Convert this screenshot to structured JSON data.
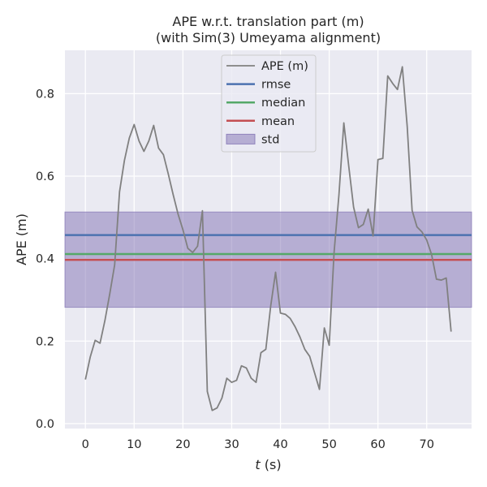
{
  "chart_data": {
    "type": "line",
    "title": "APE w.r.t. translation part (m)",
    "subtitle": "(with Sim(3) Umeyama alignment)",
    "xlabel_var": "t",
    "xlabel_unit": " (s)",
    "ylabel": "APE (m)",
    "xlim": [
      -4.2,
      79.2
    ],
    "ylim": [
      -0.012,
      0.905
    ],
    "x_ticks": [
      0,
      10,
      20,
      30,
      40,
      50,
      60,
      70
    ],
    "y_ticks": [
      0.0,
      0.2,
      0.4,
      0.6,
      0.8
    ],
    "y_tick_labels": [
      "0.0",
      "0.2",
      "0.4",
      "0.6",
      "0.8"
    ],
    "grid": true,
    "legend_position": "top-center",
    "colors": {
      "background": "#eaeaf2",
      "grid": "#ffffff",
      "ape": "#808080",
      "rmse": "#4c72b0",
      "median": "#55a868",
      "mean": "#c44e52",
      "std": "#8172b3"
    },
    "series": [
      {
        "name": "APE (m)",
        "x": [
          0,
          1,
          2,
          3,
          4,
          5,
          6,
          7,
          8,
          9,
          10,
          11,
          12,
          13,
          14,
          15,
          16,
          17,
          18,
          19,
          20,
          21,
          22,
          23,
          24,
          25,
          26,
          27,
          28,
          29,
          30,
          31,
          32,
          33,
          34,
          35,
          36,
          37,
          38,
          39,
          40,
          41,
          42,
          43,
          44,
          45,
          46,
          47,
          48,
          49,
          50,
          51,
          52,
          53,
          54,
          55,
          56,
          57,
          58,
          59,
          60,
          61,
          62,
          63,
          64,
          65,
          66,
          67,
          68,
          69,
          70,
          71,
          72,
          73,
          74,
          75
        ],
        "y": [
          0.107,
          0.162,
          0.202,
          0.195,
          0.25,
          0.315,
          0.385,
          0.562,
          0.638,
          0.692,
          0.725,
          0.685,
          0.66,
          0.685,
          0.723,
          0.668,
          0.652,
          0.605,
          0.555,
          0.508,
          0.47,
          0.425,
          0.415,
          0.43,
          0.516,
          0.078,
          0.032,
          0.038,
          0.062,
          0.11,
          0.1,
          0.105,
          0.14,
          0.135,
          0.11,
          0.1,
          0.172,
          0.18,
          0.285,
          0.367,
          0.268,
          0.265,
          0.255,
          0.235,
          0.21,
          0.18,
          0.163,
          0.123,
          0.083,
          0.232,
          0.19,
          0.415,
          0.555,
          0.729,
          0.625,
          0.525,
          0.475,
          0.483,
          0.52,
          0.455,
          0.64,
          0.643,
          0.843,
          0.825,
          0.81,
          0.865,
          0.72,
          0.517,
          0.477,
          0.465,
          0.445,
          0.41,
          0.35,
          0.348,
          0.353,
          0.223
        ]
      }
    ],
    "stats": {
      "rmse": 0.457,
      "median": 0.411,
      "mean": 0.397,
      "std_low": 0.282,
      "std_high": 0.513
    },
    "legend": [
      {
        "key": "ape",
        "label": "APE (m)",
        "kind": "line"
      },
      {
        "key": "rmse",
        "label": "rmse",
        "kind": "line"
      },
      {
        "key": "median",
        "label": "median",
        "kind": "line"
      },
      {
        "key": "mean",
        "label": "mean",
        "kind": "line"
      },
      {
        "key": "std",
        "label": "std",
        "kind": "patch"
      }
    ]
  }
}
